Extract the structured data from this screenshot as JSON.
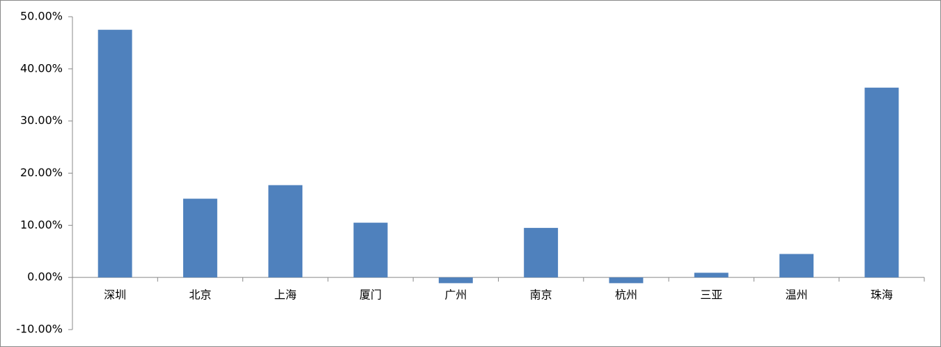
{
  "chart_data": {
    "type": "bar",
    "categories": [
      "深圳",
      "北京",
      "上海",
      "厦门",
      "广州",
      "南京",
      "杭州",
      "三亚",
      "温州",
      "珠海"
    ],
    "values": [
      47.5,
      15.1,
      17.7,
      10.5,
      -1.1,
      9.5,
      -1.1,
      0.9,
      4.5,
      36.4
    ],
    "color": "#4f81bd",
    "ylim": [
      -10,
      50
    ],
    "yticks": [
      {
        "value": -10,
        "label": "-10.00%"
      },
      {
        "value": 0,
        "label": "0.00%"
      },
      {
        "value": 10,
        "label": "10.00%"
      },
      {
        "value": 20,
        "label": "20.00%"
      },
      {
        "value": 30,
        "label": "30.00%"
      },
      {
        "value": 40,
        "label": "40.00%"
      },
      {
        "value": 50,
        "label": "50.00%"
      }
    ],
    "grid": false
  }
}
